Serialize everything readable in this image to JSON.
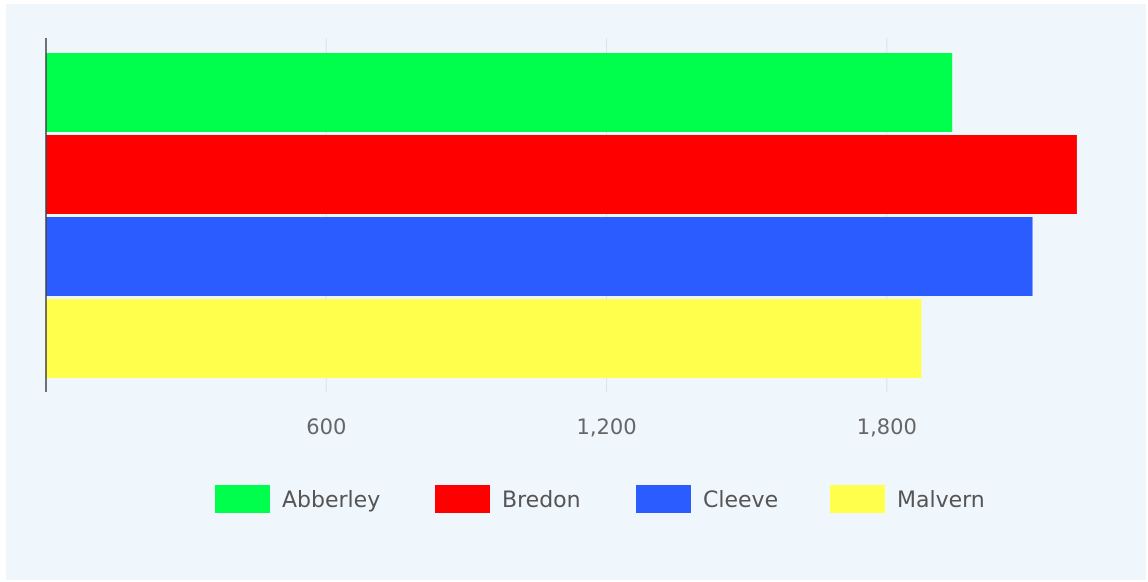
{
  "chart_data": {
    "type": "bar",
    "orientation": "horizontal",
    "title": "",
    "xlabel": "",
    "ylabel": "",
    "xlim": [
      0,
      2250
    ],
    "x_ticks": [
      600,
      1200,
      1800
    ],
    "x_tick_labels": [
      "600",
      "1,200",
      "1,800"
    ],
    "grid": true,
    "legend_position": "bottom",
    "series": [
      {
        "name": "Abberley",
        "value": 1940,
        "color": "#00ff4c"
      },
      {
        "name": "Bredon",
        "value": 2207,
        "color": "#ff0000"
      },
      {
        "name": "Cleeve",
        "value": 2112,
        "color": "#2a5cff"
      },
      {
        "name": "Malvern",
        "value": 1874,
        "color": "#ffff4c"
      }
    ]
  }
}
